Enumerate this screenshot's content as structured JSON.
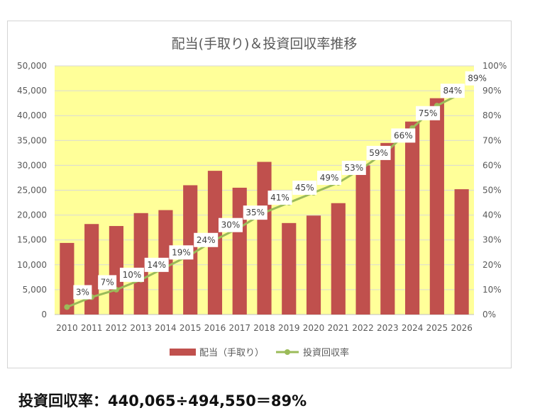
{
  "chart_data": {
    "type": "bar",
    "title": "配当(手取り)＆投資回収率推移",
    "categories": [
      "2010",
      "2011",
      "2012",
      "2013",
      "2014",
      "2015",
      "2016",
      "2017",
      "2018",
      "2019",
      "2020",
      "2021",
      "2022",
      "2023",
      "2024",
      "2025",
      "2026"
    ],
    "series": [
      {
        "name": "配当（手取り）",
        "type": "bar",
        "axis": "left",
        "color": "#c0504d",
        "values": [
          14400,
          18200,
          17800,
          20400,
          21000,
          26000,
          28900,
          25500,
          30700,
          18400,
          19900,
          22400,
          30000,
          34500,
          38800,
          43500,
          25200
        ]
      },
      {
        "name": "投資回収率",
        "type": "line",
        "axis": "right",
        "color": "#9bbb59",
        "values": [
          3,
          7,
          10,
          14,
          19,
          24,
          30,
          35,
          41,
          45,
          49,
          53,
          59,
          66,
          75,
          84,
          89
        ],
        "labels": [
          "3%",
          "7%",
          "10%",
          "14%",
          "19%",
          "24%",
          "30%",
          "35%",
          "41%",
          "45%",
          "49%",
          "53%",
          "59%",
          "66%",
          "75%",
          "84%",
          "89%"
        ]
      }
    ],
    "y_left": {
      "min": 0,
      "max": 50000,
      "step": 5000,
      "tick_labels": [
        "0",
        "5,000",
        "10,000",
        "15,000",
        "20,000",
        "25,000",
        "30,000",
        "35,000",
        "40,000",
        "45,000",
        "50,000"
      ]
    },
    "y_right": {
      "min": 0,
      "max": 100,
      "step": 10,
      "tick_labels": [
        "0%",
        "10%",
        "20%",
        "30%",
        "40%",
        "50%",
        "60%",
        "70%",
        "80%",
        "90%",
        "100%"
      ]
    },
    "plot_background": "#ffff99",
    "legend_position": "bottom"
  },
  "footer": {
    "formula": "投資回収率：440,065÷494,550＝89%"
  }
}
